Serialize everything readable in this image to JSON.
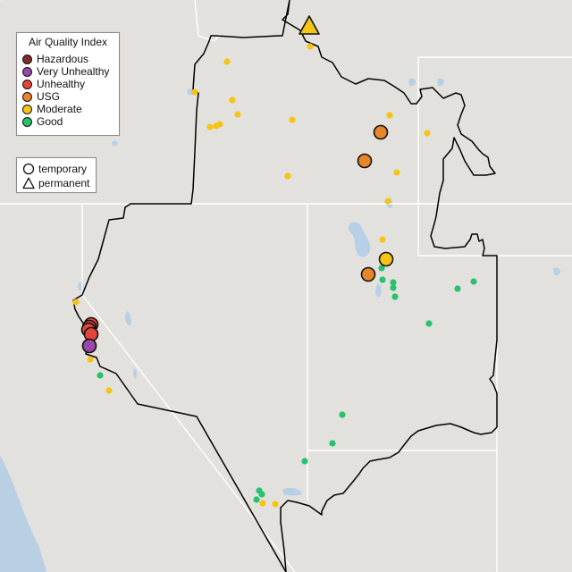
{
  "legend": {
    "title": "Air Quality Index",
    "items": [
      {
        "label": "Hazardous",
        "color": "#7e2d2b"
      },
      {
        "label": "Very Unhealthy",
        "color": "#9748a8"
      },
      {
        "label": "Unhealthy",
        "color": "#e5443a"
      },
      {
        "label": "USG",
        "color": "#e8842a"
      },
      {
        "label": "Moderate",
        "color": "#f5c417"
      },
      {
        "label": "Good",
        "color": "#26c26d"
      }
    ],
    "types": [
      {
        "label": "temporary",
        "shape": "circle"
      },
      {
        "label": "permanent",
        "shape": "triangle"
      }
    ]
  },
  "map": {
    "colors": {
      "land": "#e3e1dd",
      "relief_light": "#efeeec",
      "relief_dark": "#cfccc7",
      "water": "#b7d0e6",
      "ocean": "#b9cfe3",
      "state_lines": "#ffffff",
      "region_border": "#000000"
    },
    "sites": [
      {
        "category": "Moderate",
        "shape": "triangle",
        "size": "large",
        "name": "site-1"
      },
      {
        "category": "Moderate",
        "shape": "circle",
        "size": "small",
        "name": "site-2"
      },
      {
        "category": "Moderate",
        "shape": "circle",
        "size": "small",
        "name": "site-3"
      },
      {
        "category": "Moderate",
        "shape": "circle",
        "size": "small",
        "name": "site-4"
      },
      {
        "category": "Moderate",
        "shape": "circle",
        "size": "small",
        "name": "site-5"
      },
      {
        "category": "Moderate",
        "shape": "circle",
        "size": "small",
        "name": "site-6"
      },
      {
        "category": "Moderate",
        "shape": "circle",
        "size": "small",
        "name": "site-7"
      },
      {
        "category": "Moderate",
        "shape": "circle",
        "size": "small",
        "name": "site-8"
      },
      {
        "category": "Moderate",
        "shape": "circle",
        "size": "small",
        "name": "site-9"
      },
      {
        "category": "Moderate",
        "shape": "circle",
        "size": "small",
        "name": "site-10"
      },
      {
        "category": "Moderate",
        "shape": "circle",
        "size": "small",
        "name": "site-11"
      },
      {
        "category": "Moderate",
        "shape": "circle",
        "size": "small",
        "name": "site-12"
      },
      {
        "category": "USG",
        "shape": "circle",
        "size": "large",
        "name": "site-13"
      },
      {
        "category": "USG",
        "shape": "circle",
        "size": "large",
        "name": "site-14"
      },
      {
        "category": "Moderate",
        "shape": "circle",
        "size": "small",
        "name": "site-15"
      },
      {
        "category": "Moderate",
        "shape": "circle",
        "size": "small",
        "name": "site-16"
      },
      {
        "category": "Moderate",
        "shape": "circle",
        "size": "small",
        "name": "site-17"
      },
      {
        "category": "Moderate",
        "shape": "circle",
        "size": "small",
        "name": "site-18"
      },
      {
        "category": "Moderate",
        "shape": "circle",
        "size": "large",
        "name": "site-19"
      },
      {
        "category": "USG",
        "shape": "circle",
        "size": "large",
        "name": "site-20"
      },
      {
        "category": "Good",
        "shape": "circle",
        "size": "small",
        "name": "site-21"
      },
      {
        "category": "Good",
        "shape": "circle",
        "size": "small",
        "name": "site-22"
      },
      {
        "category": "Good",
        "shape": "circle",
        "size": "small",
        "name": "site-23"
      },
      {
        "category": "Good",
        "shape": "circle",
        "size": "small",
        "name": "site-24"
      },
      {
        "category": "Good",
        "shape": "circle",
        "size": "small",
        "name": "site-25"
      },
      {
        "category": "Good",
        "shape": "circle",
        "size": "small",
        "name": "site-26"
      },
      {
        "category": "Good",
        "shape": "circle",
        "size": "small",
        "name": "site-27"
      },
      {
        "category": "Moderate",
        "shape": "circle",
        "size": "small",
        "name": "site-28"
      },
      {
        "category": "Unhealthy",
        "shape": "circle",
        "size": "large",
        "name": "site-29"
      },
      {
        "category": "Unhealthy",
        "shape": "circle",
        "size": "large",
        "name": "site-30"
      },
      {
        "category": "Unhealthy",
        "shape": "circle",
        "size": "large",
        "name": "site-31"
      },
      {
        "category": "Unhealthy",
        "shape": "circle",
        "size": "large",
        "name": "site-32"
      },
      {
        "category": "Very Unhealthy",
        "shape": "circle",
        "size": "large",
        "name": "site-33"
      },
      {
        "category": "Moderate",
        "shape": "circle",
        "size": "small",
        "name": "site-34"
      },
      {
        "category": "Good",
        "shape": "circle",
        "size": "small",
        "name": "site-35"
      },
      {
        "category": "Moderate",
        "shape": "circle",
        "size": "small",
        "name": "site-36"
      },
      {
        "category": "Good",
        "shape": "circle",
        "size": "small",
        "name": "site-37"
      },
      {
        "category": "Good",
        "shape": "circle",
        "size": "small",
        "name": "site-38"
      },
      {
        "category": "Good",
        "shape": "circle",
        "size": "small",
        "name": "site-39"
      },
      {
        "category": "Good",
        "shape": "circle",
        "size": "small",
        "name": "site-40"
      },
      {
        "category": "Good",
        "shape": "circle",
        "size": "small",
        "name": "site-41"
      },
      {
        "category": "Good",
        "shape": "circle",
        "size": "small",
        "name": "site-42"
      },
      {
        "category": "Moderate",
        "shape": "circle",
        "size": "small",
        "name": "site-43"
      },
      {
        "category": "Good",
        "shape": "circle",
        "size": "small",
        "name": "site-44"
      },
      {
        "category": "Moderate",
        "shape": "circle",
        "size": "small",
        "name": "site-45"
      }
    ]
  }
}
